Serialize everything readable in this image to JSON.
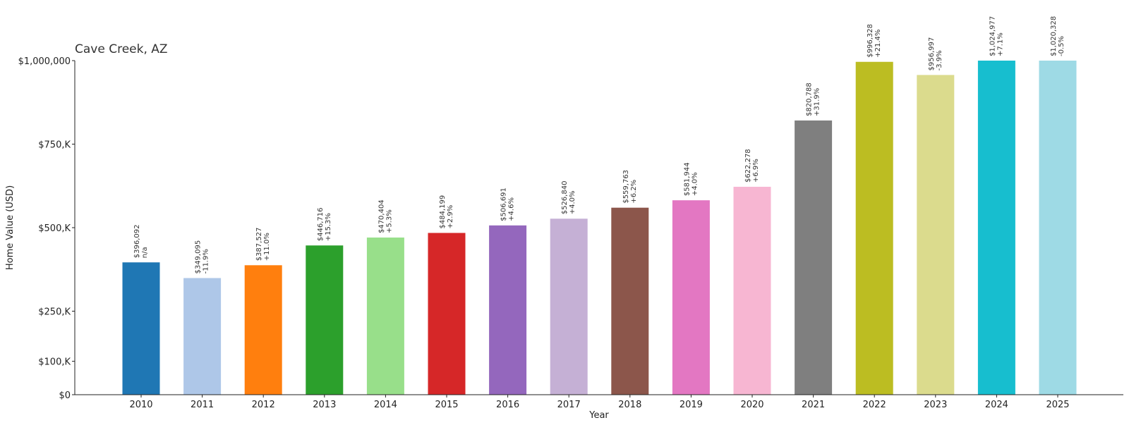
{
  "chart_data": {
    "type": "bar",
    "title": "Cave Creek, AZ",
    "xlabel": "Year",
    "ylabel": "Home Value (USD)",
    "ylim": [
      0,
      1000000
    ],
    "grid": false,
    "categories": [
      "2010",
      "2011",
      "2012",
      "2013",
      "2014",
      "2015",
      "2016",
      "2017",
      "2018",
      "2019",
      "2020",
      "2021",
      "2022",
      "2023",
      "2024",
      "2025"
    ],
    "values": [
      396092,
      349095,
      387527,
      446716,
      470404,
      484199,
      506691,
      526840,
      559763,
      581944,
      622278,
      820788,
      996328,
      956997,
      1024977,
      1020328
    ],
    "value_labels": [
      "$396,092",
      "$349,095",
      "$387,527",
      "$446,716",
      "$470,404",
      "$484,199",
      "$506,691",
      "$526,840",
      "$559,763",
      "$581,944",
      "$622,278",
      "$820,788",
      "$996,328",
      "$956,997",
      "$1,024,977",
      "$1,020,328"
    ],
    "change_labels": [
      "n/a",
      "-11.9%",
      "+11.0%",
      "+15.3%",
      "+5.3%",
      "+2.9%",
      "+4.6%",
      "+4.0%",
      "+6.2%",
      "+4.0%",
      "+6.9%",
      "+31.9%",
      "+21.4%",
      "-3.9%",
      "+7.1%",
      "-0.5%"
    ],
    "colors": [
      "#1f77b4",
      "#aec7e8",
      "#ff7f0e",
      "#2ca02c",
      "#98df8a",
      "#d62728",
      "#9467bd",
      "#c5b0d5",
      "#8c564b",
      "#e377c2",
      "#f7b6d2",
      "#7f7f7f",
      "#bcbd22",
      "#dbdb8d",
      "#17becf",
      "#9edae5"
    ],
    "yticks": [
      {
        "value": 0,
        "label": "$0"
      },
      {
        "value": 100000,
        "label": "$100,K"
      },
      {
        "value": 250000,
        "label": "$250,K"
      },
      {
        "value": 500000,
        "label": "$500,K"
      },
      {
        "value": 750000,
        "label": "$750,K"
      },
      {
        "value": 1000000,
        "label": "$1,000,000"
      }
    ]
  }
}
